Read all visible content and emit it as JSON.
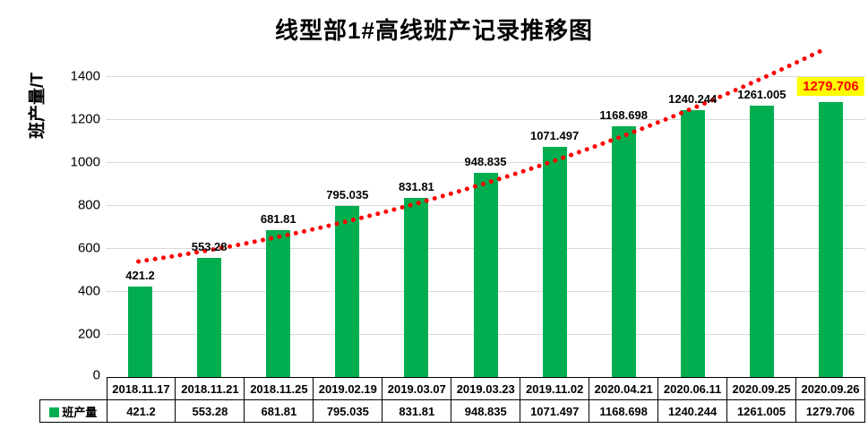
{
  "title": "线型部1#高线班产记录推移图",
  "y_axis": {
    "label": "班产量/T",
    "ticks": [
      0,
      200,
      400,
      600,
      800,
      1000,
      1200,
      1400
    ]
  },
  "legend": {
    "label": "班产量",
    "swatch_color": "#00AE50"
  },
  "colors": {
    "bar": "#00AE50",
    "trendline": "#FF0000",
    "gridline": "#D9D9D9",
    "highlight_bg": "#FFFF00",
    "highlight_text": "#FF0000",
    "label_text": "#000000"
  },
  "chart_data": {
    "type": "bar",
    "title": "线型部1#高线班产记录推移图",
    "xlabel": "",
    "ylabel": "班产量/T",
    "categories": [
      "2018.11.17",
      "2018.11.21",
      "2018.11.25",
      "2019.02.19",
      "2019.03.07",
      "2019.03.23",
      "2019.11.02",
      "2020.04.21",
      "2020.06.11",
      "2020.09.25",
      "2020.09.26"
    ],
    "series": [
      {
        "name": "班产量",
        "values": [
          421.2,
          553.28,
          681.81,
          795.035,
          831.81,
          948.835,
          1071.497,
          1168.698,
          1240.244,
          1261.005,
          1279.706
        ]
      }
    ],
    "value_labels": [
      "421.2",
      "553.28",
      "681.81",
      "795.035",
      "831.81",
      "948.835",
      "1071.497",
      "1168.698",
      "1240.244",
      "1261.005",
      "1279.706"
    ],
    "ylim": [
      0,
      1400
    ],
    "ytick_interval": 200,
    "grid": true,
    "has_trendline": true,
    "trendline_style": "dotted",
    "legend_position": "data-table-left",
    "data_table_shown": true,
    "highlighted_point": {
      "index": 10,
      "label": "1279.706"
    }
  }
}
